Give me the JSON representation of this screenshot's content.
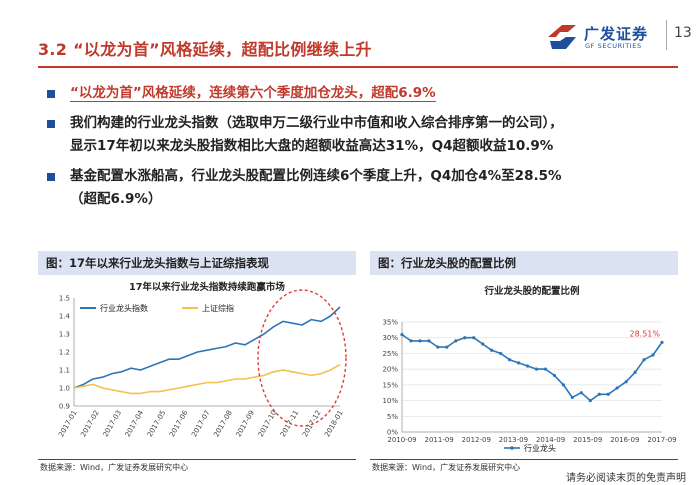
{
  "header": {
    "title": "3.2 “以龙为首”风格延续，超配比例继续上升",
    "logo_cn": "广发证券",
    "logo_en": "GF SECURITIES",
    "page_number": "13"
  },
  "colors": {
    "accent_red": "#c0392b",
    "brand_blue": "#1f4e9a",
    "panel_bg": "#dbe3f2",
    "series_blue": "#2e75b6",
    "series_yellow": "#f2c14e"
  },
  "bullets": [
    {
      "text": "“以龙为首”风格延续，连续第六个季度加仓龙头，超配6.9%"
    },
    {
      "line1": "我们构建的行业龙头指数（选取申万二级行业中市值和收入综合排序第一的公司），",
      "line2": "显示17年初以来龙头股指数相比大盘的超额收益高达31%，Q4超额收益10.9%"
    },
    {
      "line1": "基金配置水涨船高，行业龙头股配置比例连续6个季度上升，Q4加仓4%至28.5%",
      "line2": "（超配6.9%）"
    }
  ],
  "left_panel": {
    "title": "图：17年以来行业龙头指数与上证综指表现",
    "source": "数据来源：Wind，广发证券发展研究中心"
  },
  "right_panel": {
    "title": "图：行业龙头股的配置比例",
    "source": "数据来源：Wind，广发证券发展研究中心"
  },
  "footer": {
    "disclaimer": "请务必阅读末页的免责声明"
  },
  "chart_data": [
    {
      "type": "line",
      "title": "17年以来行业龙头指数持续跑赢市场",
      "ylim": [
        0.9,
        1.5
      ],
      "yticks": [
        "0.9",
        "1.0",
        "1.1",
        "1.2",
        "1.3",
        "1.4",
        "1.5"
      ],
      "x_tick_labels": [
        "2017-01",
        "2017-02",
        "2017-03",
        "2017-04",
        "2017-05",
        "2017-06",
        "2017-07",
        "2017-08",
        "2017-09",
        "2017-10",
        "2017-11",
        "2017-12",
        "2018-01"
      ],
      "legend_position": "top-left",
      "annotation": "red dashed ellipse highlighting 2017-10 to 2018-01",
      "series": [
        {
          "name": "行业龙头指数",
          "color": "#2e75b6",
          "values": [
            1.0,
            1.02,
            1.05,
            1.06,
            1.08,
            1.09,
            1.11,
            1.1,
            1.12,
            1.14,
            1.16,
            1.16,
            1.18,
            1.2,
            1.21,
            1.22,
            1.23,
            1.25,
            1.24,
            1.27,
            1.3,
            1.34,
            1.37,
            1.36,
            1.35,
            1.38,
            1.37,
            1.4,
            1.45
          ]
        },
        {
          "name": "上证综指",
          "color": "#f2c14e",
          "values": [
            1.0,
            1.01,
            1.02,
            1.0,
            0.99,
            0.98,
            0.97,
            0.97,
            0.98,
            0.98,
            0.99,
            1.0,
            1.01,
            1.02,
            1.03,
            1.03,
            1.04,
            1.05,
            1.05,
            1.06,
            1.07,
            1.09,
            1.1,
            1.09,
            1.08,
            1.07,
            1.08,
            1.1,
            1.13
          ]
        }
      ]
    },
    {
      "type": "line",
      "title": "行业龙头股的配置比例",
      "ylim": [
        0,
        0.35
      ],
      "yticks": [
        "0%",
        "5%",
        "10%",
        "15%",
        "20%",
        "25%",
        "30%",
        "35%"
      ],
      "x_tick_labels": [
        "2010-09",
        "2011-09",
        "2012-09",
        "2013-09",
        "2014-09",
        "2015-09",
        "2016-09",
        "2017-09"
      ],
      "legend_position": "bottom-center",
      "series": [
        {
          "name": "行业龙头",
          "color": "#2e75b6",
          "values": [
            0.31,
            0.29,
            0.29,
            0.29,
            0.27,
            0.27,
            0.29,
            0.3,
            0.3,
            0.28,
            0.26,
            0.25,
            0.23,
            0.22,
            0.21,
            0.2,
            0.2,
            0.18,
            0.15,
            0.11,
            0.125,
            0.1,
            0.12,
            0.12,
            0.14,
            0.16,
            0.19,
            0.23,
            0.2451,
            0.2851
          ]
        }
      ],
      "data_label": "28.51%"
    }
  ]
}
